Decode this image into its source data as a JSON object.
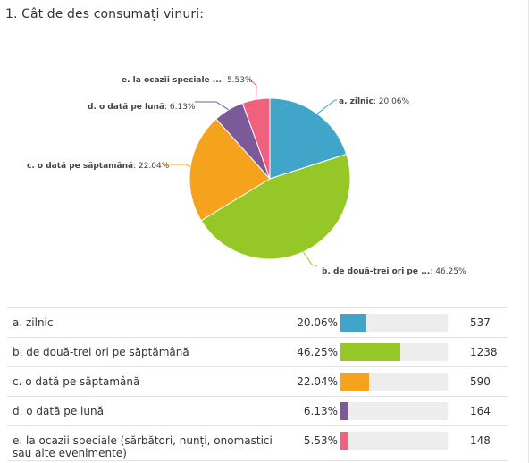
{
  "question": {
    "title": "1. Cât de des consumați vinuri:"
  },
  "chart_data": {
    "type": "pie",
    "title": "1. Cât de des consumați vinuri:",
    "slices": [
      {
        "key": "a",
        "label": "a. zilnic",
        "pie_label": "a. zilnic",
        "percent": 20.06,
        "percent_text": "20.06%",
        "count": 537,
        "color": "#40a5c8"
      },
      {
        "key": "b",
        "label": "b. de două-trei ori pe săptămână",
        "pie_label": "b. de două-trei ori pe ...",
        "percent": 46.25,
        "percent_text": "46.25%",
        "count": 1238,
        "color": "#95c827"
      },
      {
        "key": "c",
        "label": "c. o dată pe săptamână",
        "pie_label": "c. o dată pe săptamână",
        "percent": 22.04,
        "percent_text": "22.04%",
        "count": 590,
        "color": "#f5a31c"
      },
      {
        "key": "d",
        "label": "d. o dată pe lună",
        "pie_label": "d. o dată pe lună",
        "percent": 6.13,
        "percent_text": "6.13%",
        "count": 164,
        "color": "#7c5a99"
      },
      {
        "key": "e",
        "label": "e. la ocazii speciale (sărbători, nunți, onomastici sau alte evenimente)",
        "pie_label": "e. la ocazii speciale ...",
        "percent": 5.53,
        "percent_text": "5.53%",
        "count": 148,
        "color": "#f0607f"
      }
    ]
  }
}
